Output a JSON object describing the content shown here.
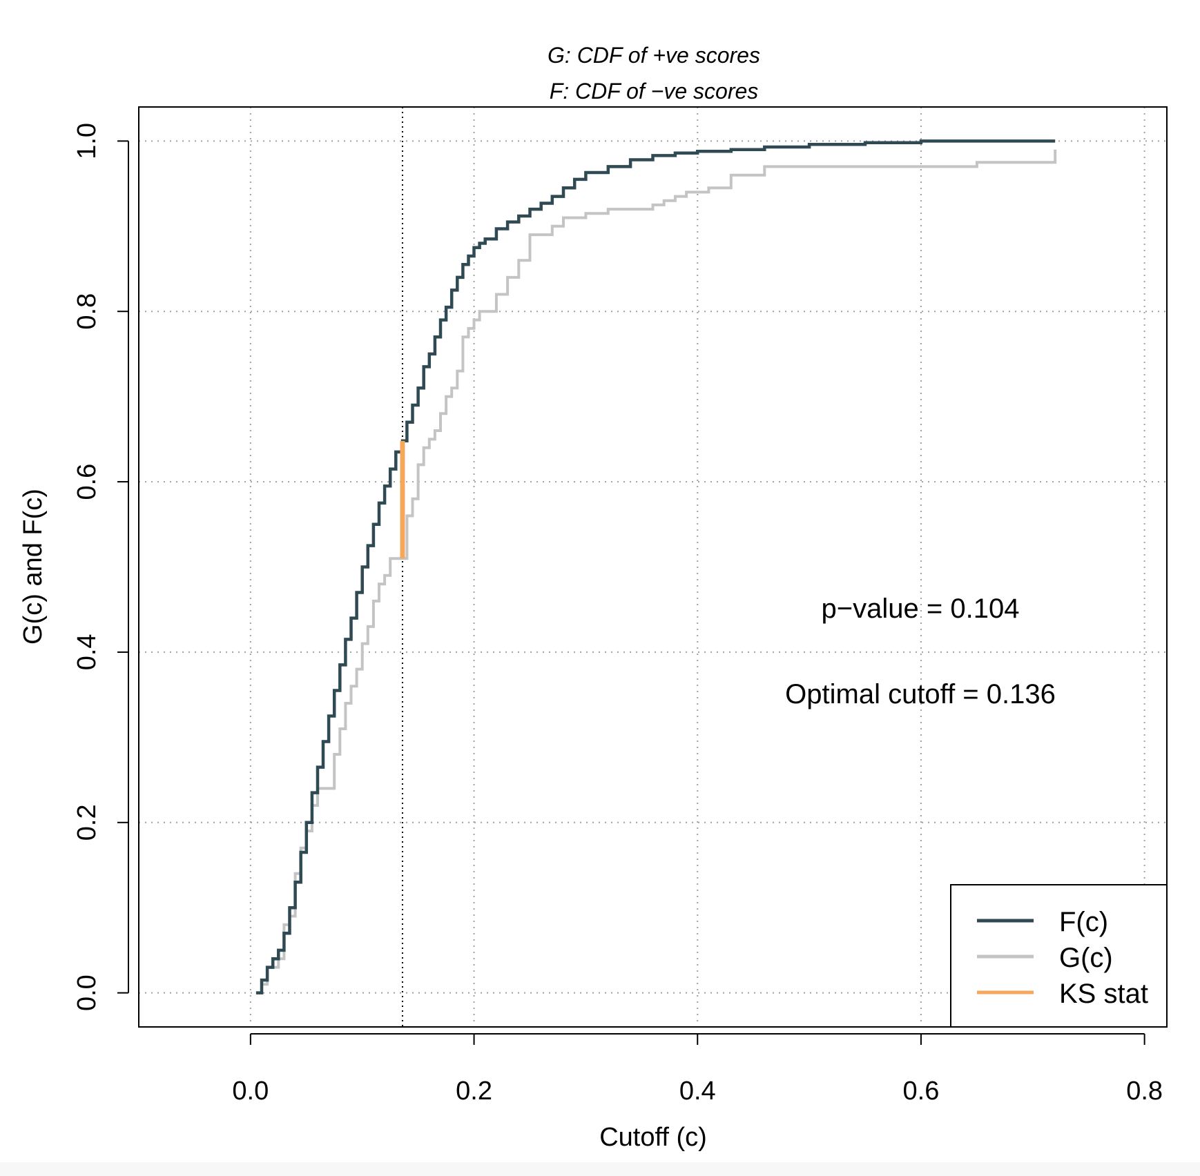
{
  "chart_data": {
    "type": "line",
    "subtitle_lines": [
      "G: CDF of +ve scores",
      "F: CDF of −ve scores"
    ],
    "xlabel": "Cutoff (c)",
    "ylabel": "G(c) and F(c)",
    "xlim": [
      -0.1,
      0.82
    ],
    "ylim": [
      -0.04,
      1.04
    ],
    "x_ticks": [
      0.0,
      0.2,
      0.4,
      0.6,
      0.8
    ],
    "x_tick_labels": [
      "0.0",
      "0.2",
      "0.4",
      "0.6",
      "0.8"
    ],
    "y_ticks": [
      0.0,
      0.2,
      0.4,
      0.6,
      0.8,
      1.0
    ],
    "y_tick_labels": [
      "0.0",
      "0.2",
      "0.4",
      "0.6",
      "0.8",
      "1.0"
    ],
    "grid": true,
    "legend_position": "bottom-right",
    "series": [
      {
        "name": "F(c)",
        "color": "#2f4a52",
        "x": [
          0.005,
          0.01,
          0.015,
          0.02,
          0.025,
          0.03,
          0.035,
          0.04,
          0.045,
          0.05,
          0.055,
          0.06,
          0.065,
          0.07,
          0.075,
          0.08,
          0.085,
          0.09,
          0.095,
          0.1,
          0.105,
          0.11,
          0.115,
          0.12,
          0.125,
          0.13,
          0.136,
          0.14,
          0.145,
          0.15,
          0.155,
          0.16,
          0.165,
          0.17,
          0.175,
          0.18,
          0.185,
          0.19,
          0.195,
          0.2,
          0.205,
          0.21,
          0.22,
          0.23,
          0.24,
          0.25,
          0.26,
          0.27,
          0.28,
          0.29,
          0.3,
          0.32,
          0.34,
          0.36,
          0.38,
          0.4,
          0.43,
          0.46,
          0.5,
          0.55,
          0.6,
          0.65,
          0.72
        ],
        "values": [
          0.0,
          0.015,
          0.03,
          0.04,
          0.05,
          0.07,
          0.1,
          0.13,
          0.165,
          0.2,
          0.235,
          0.265,
          0.295,
          0.325,
          0.355,
          0.385,
          0.415,
          0.44,
          0.47,
          0.5,
          0.525,
          0.55,
          0.575,
          0.595,
          0.615,
          0.635,
          0.648,
          0.67,
          0.69,
          0.71,
          0.735,
          0.75,
          0.77,
          0.79,
          0.805,
          0.825,
          0.84,
          0.855,
          0.865,
          0.875,
          0.88,
          0.885,
          0.897,
          0.905,
          0.912,
          0.92,
          0.927,
          0.935,
          0.945,
          0.955,
          0.963,
          0.97,
          0.978,
          0.983,
          0.986,
          0.988,
          0.99,
          0.993,
          0.996,
          0.998,
          1.0,
          1.0,
          1.0
        ]
      },
      {
        "name": "G(c)",
        "color": "#c4c4c4",
        "x": [
          0.005,
          0.01,
          0.015,
          0.02,
          0.025,
          0.03,
          0.035,
          0.04,
          0.045,
          0.05,
          0.055,
          0.06,
          0.065,
          0.07,
          0.075,
          0.08,
          0.085,
          0.09,
          0.095,
          0.1,
          0.105,
          0.11,
          0.115,
          0.12,
          0.125,
          0.13,
          0.136,
          0.14,
          0.145,
          0.15,
          0.155,
          0.16,
          0.165,
          0.17,
          0.175,
          0.18,
          0.185,
          0.19,
          0.195,
          0.2,
          0.205,
          0.21,
          0.22,
          0.23,
          0.24,
          0.25,
          0.26,
          0.27,
          0.28,
          0.29,
          0.3,
          0.32,
          0.34,
          0.36,
          0.37,
          0.38,
          0.39,
          0.4,
          0.41,
          0.43,
          0.46,
          0.5,
          0.55,
          0.6,
          0.65,
          0.72
        ],
        "values": [
          0.0,
          0.01,
          0.03,
          0.03,
          0.04,
          0.08,
          0.09,
          0.14,
          0.17,
          0.19,
          0.22,
          0.24,
          0.24,
          0.24,
          0.28,
          0.31,
          0.34,
          0.36,
          0.38,
          0.41,
          0.43,
          0.46,
          0.48,
          0.49,
          0.51,
          0.51,
          0.51,
          0.56,
          0.58,
          0.62,
          0.64,
          0.65,
          0.66,
          0.68,
          0.7,
          0.71,
          0.73,
          0.77,
          0.78,
          0.79,
          0.8,
          0.8,
          0.82,
          0.84,
          0.86,
          0.89,
          0.89,
          0.9,
          0.91,
          0.91,
          0.915,
          0.92,
          0.92,
          0.925,
          0.93,
          0.935,
          0.94,
          0.94,
          0.945,
          0.96,
          0.97,
          0.97,
          0.97,
          0.97,
          0.975,
          0.99
        ]
      }
    ],
    "ks_stat": {
      "name": "KS stat",
      "color": "#f5a85c",
      "x": 0.136,
      "y_low": 0.51,
      "y_high": 0.648
    },
    "optimal_cutoff_line": {
      "x": 0.136,
      "style": "dotted"
    },
    "annotations": [
      "p−value = 0.104",
      "Optimal cutoff = 0.136"
    ],
    "legend": [
      {
        "label": "F(c)",
        "color": "#2f4a52"
      },
      {
        "label": "G(c)",
        "color": "#c4c4c4"
      },
      {
        "label": "KS stat",
        "color": "#f5a85c"
      }
    ]
  }
}
